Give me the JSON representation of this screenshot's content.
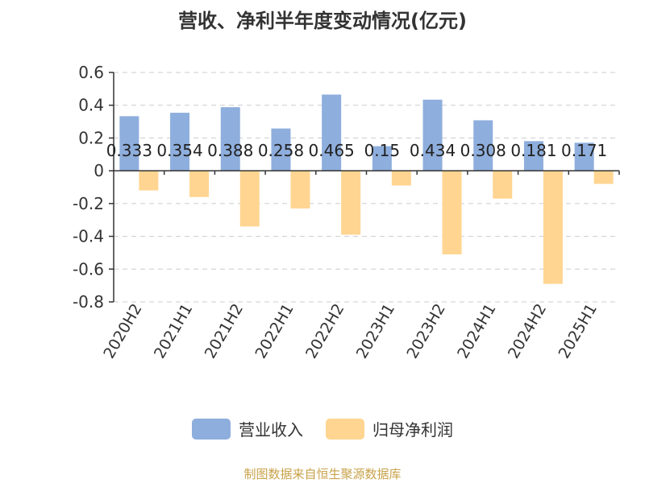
{
  "title": "营收、净利半年度变动情况(亿元)",
  "source": "制图数据来自恒生聚源数据库",
  "colors": {
    "revenue": "#8eaedd",
    "profit": "#ffd591",
    "axis": "#333333",
    "grid": "#cccccc"
  },
  "chart_data": {
    "type": "bar",
    "title": "营收、净利半年度变动情况(亿元)",
    "categories": [
      "2020H2",
      "2021H1",
      "2021H2",
      "2022H1",
      "2022H2",
      "2023H1",
      "2023H2",
      "2024H1",
      "2024H2",
      "2025H1"
    ],
    "series": [
      {
        "name": "营业收入",
        "values": [
          0.333,
          0.354,
          0.388,
          0.258,
          0.465,
          0.15,
          0.434,
          0.308,
          0.181,
          0.171
        ],
        "labels": [
          "0.333",
          "0.354",
          "0.388",
          "0.258",
          "0.465",
          "0.15",
          "0.434",
          "0.308",
          "0.181",
          "0.171"
        ]
      },
      {
        "name": "归母净利润",
        "values": [
          -0.12,
          -0.16,
          -0.34,
          -0.23,
          -0.39,
          -0.09,
          -0.51,
          -0.17,
          -0.69,
          -0.08
        ]
      }
    ],
    "y_ticks": [
      "0.6",
      "0.4",
      "0.2",
      "0",
      "-0.2",
      "-0.4",
      "-0.6",
      "-0.8"
    ],
    "ylim": [
      -0.8,
      0.6
    ],
    "grid": "horizontal dashed",
    "legend_position": "bottom"
  }
}
